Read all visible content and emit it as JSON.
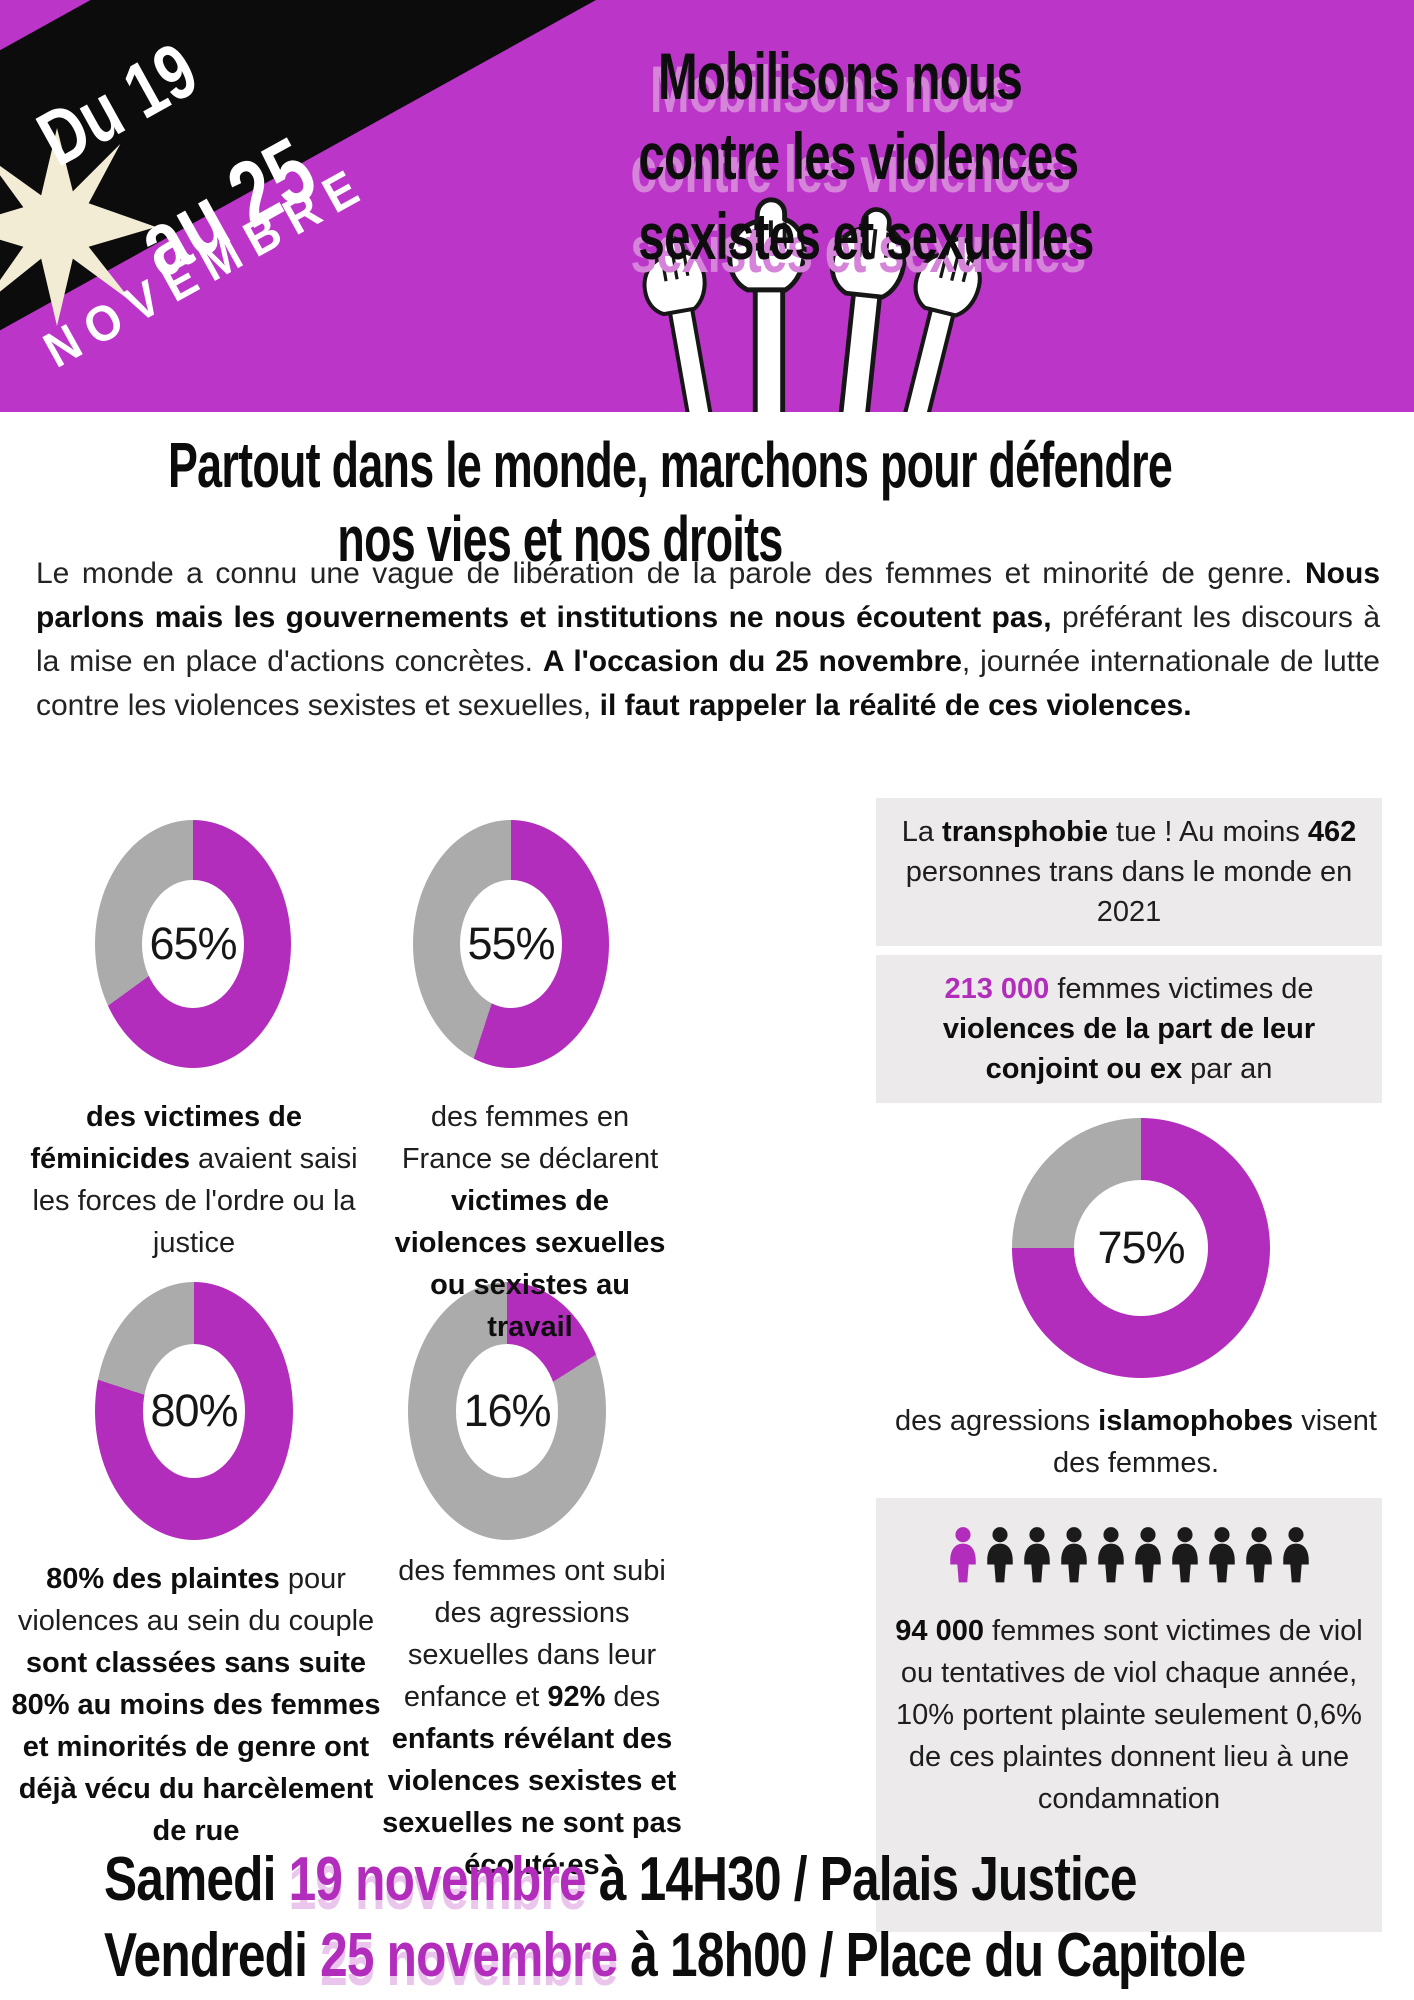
{
  "colors": {
    "accent": "#b32dbd",
    "header_bg": "#bb35c9",
    "donut_gray": "#ababab",
    "box_bg": "#edeaec",
    "cream": "#f2ecd4",
    "title_shadow": "#d584da"
  },
  "header": {
    "date_top": "Du 19",
    "date_bottom": "au 25",
    "month": "NOVEMBRE",
    "title_lines": [
      "Mobilisons nous",
      "contre les violences",
      "sexistes et sexuelles"
    ]
  },
  "intro": {
    "heading_line1": "Partout dans le monde, marchons pour défendre",
    "heading_line2": "nos vies et nos droits",
    "paragraph": {
      "p1": "Le monde a connu une vague de libération de la parole des femmes et minorité de genre. ",
      "p2": "Nous parlons mais les gouvernements et institutions ne nous écoutent pas,",
      "p3": " préférant les discours à la mise en place d'actions concrètes. ",
      "p4": "A l'occasion du 25 novembre",
      "p5": ", journée internationale de lutte contre les violences sexistes et sexuelles, ",
      "p6": "il faut rappeler la réalité de ces violences."
    }
  },
  "chart_data": [
    {
      "type": "donut",
      "value": 65,
      "label": "65%",
      "caption": {
        "b1": "des victimes de féminicides",
        "r1": " avaient saisi les forces de l'ordre ou la justice"
      }
    },
    {
      "type": "donut",
      "value": 55,
      "label": "55%",
      "caption": {
        "r1": "des femmes en France se déclarent ",
        "b1": "victimes de violences sexuelles ou sexistes au travail"
      }
    },
    {
      "type": "donut",
      "value": 80,
      "label": "80%",
      "caption": {
        "b1": "80% des plaintes",
        "r1": " pour violences au sein du couple ",
        "b2": "sont classées sans suite 80% au moins des femmes et minorités de genre ont déjà vécu du harcèlement de rue"
      }
    },
    {
      "type": "donut",
      "value": 16,
      "label": "16%",
      "caption": {
        "r1": "des femmes ont subi des agressions sexuelles dans leur enfance et ",
        "b1": "92%",
        "r2": " des ",
        "b2": "enfants révélant des violences sexistes et sexuelles ne sont pas écouté·es"
      }
    },
    {
      "type": "donut",
      "value": 75,
      "label": "75%",
      "caption": {
        "r1": "des agressions ",
        "b1": "islamophobes",
        "r2": " visent des femmes."
      }
    }
  ],
  "stat_boxes": {
    "box1": {
      "r1": "La ",
      "b1": "transphobie",
      "r2": " tue ! Au moins ",
      "b2": "462",
      "r3": " personnes trans dans le monde en 2021"
    },
    "box2": {
      "a1": "213 000",
      "r1": " femmes victimes de ",
      "b1": "violences de la part de leur conjoint ou ex",
      "r2": " par an"
    },
    "box3": {
      "people_total": 10,
      "people_highlighted": 1,
      "b1": "94 000",
      "r1": " femmes sont victimes de viol ou tentatives de viol chaque année, 10% portent plainte seulement 0,6% de ces plaintes donnent lieu à une condamnation"
    }
  },
  "footer": {
    "l1a": "Samedi ",
    "l1b": "19 novembre",
    "l1c": " à 14H30 / Palais Justice",
    "l2a": "Vendredi ",
    "l2b": "25 novembre",
    "l2c": " à 18h00 / Place du Capitole"
  }
}
